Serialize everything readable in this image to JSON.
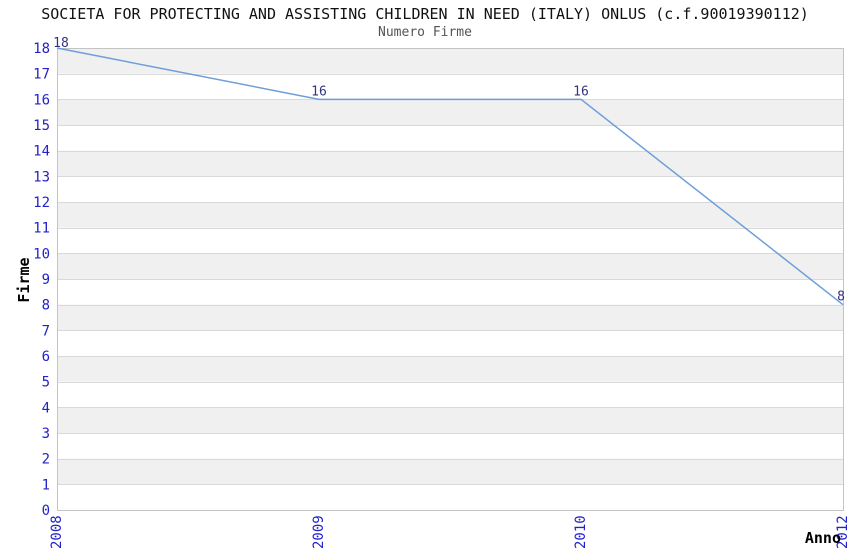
{
  "header": {
    "title": "SOCIETA FOR PROTECTING AND ASSISTING CHILDREN IN NEED (ITALY) ONLUS (c.f.90019390112)"
  },
  "chart_data": {
    "type": "line",
    "title": "Numero Firme",
    "xlabel": "Anno",
    "ylabel": "Firme",
    "categories": [
      "2008",
      "2009",
      "2010",
      "2012"
    ],
    "values": [
      18,
      16,
      16,
      8
    ],
    "point_labels": [
      "18",
      "16",
      "16",
      "8"
    ],
    "ylim": [
      0,
      18
    ],
    "ytick_step": 1,
    "grid": true,
    "stripes": true,
    "legend": "none"
  },
  "colors": {
    "line": "#6d9eda",
    "tick_label": "#2222cc",
    "point_label": "#333380",
    "stripe": "#f0f0f0",
    "gridline": "#d9d9d9",
    "plot_border": "#c4c4c4",
    "title": "#111111",
    "subtitle": "#555555",
    "axis_title": "#000000",
    "background": "#ffffff"
  }
}
